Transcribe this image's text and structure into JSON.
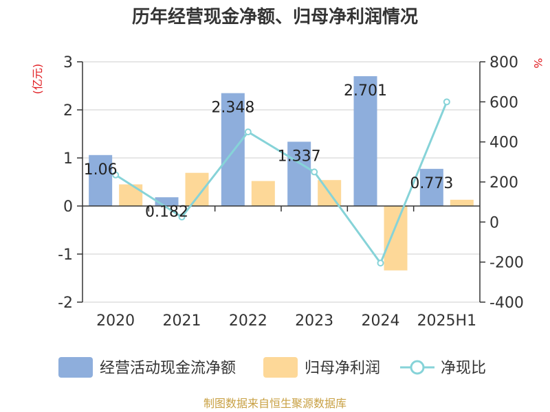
{
  "title": "历年经营现金净额、归母净利润情况",
  "source": "制图数据来自恒生聚源数据库",
  "colors": {
    "cash": "#8eaedc",
    "profit": "#fdd898",
    "ratio": "#86d3d8",
    "unit": "#e0191e",
    "source": "#c8a043"
  },
  "chart_data": {
    "type": "bar",
    "categories": [
      "2020",
      "2021",
      "2022",
      "2023",
      "2024",
      "2025H1"
    ],
    "series": [
      {
        "name": "经营活动现金流净额",
        "axis": "left",
        "kind": "bar",
        "values": [
          1.06,
          0.182,
          2.348,
          1.337,
          2.701,
          0.773
        ],
        "data_labels": [
          "1.06",
          "0.182",
          "2.348",
          "1.337",
          "2.701",
          "0.773"
        ]
      },
      {
        "name": "归母净利润",
        "axis": "left",
        "kind": "bar",
        "values": [
          0.45,
          0.69,
          0.52,
          0.54,
          -1.34,
          0.13
        ]
      },
      {
        "name": "净现比",
        "axis": "right",
        "kind": "line",
        "values": [
          235,
          25,
          450,
          250,
          -205,
          600
        ]
      }
    ],
    "left_axis": {
      "unit": "(亿元)",
      "ylim": [
        -2,
        3
      ],
      "ticks": [
        "-2",
        "-1",
        "0",
        "1",
        "2",
        "3"
      ]
    },
    "right_axis": {
      "unit": "%",
      "ylim": [
        -400,
        800
      ],
      "ticks": [
        "-400",
        "-200",
        "0",
        "200",
        "400",
        "600",
        "800"
      ]
    },
    "grid": true,
    "legend_position": "bottom"
  }
}
